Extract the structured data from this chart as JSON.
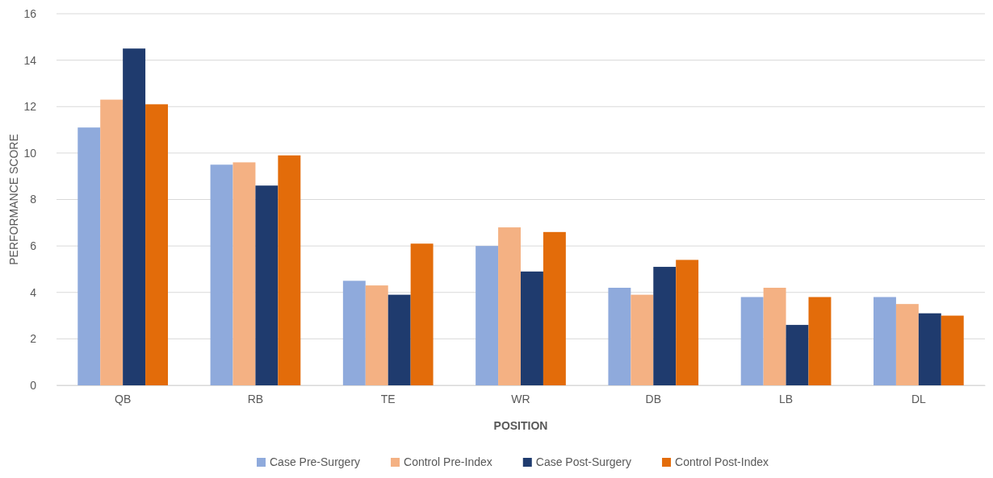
{
  "chart_data": {
    "type": "bar",
    "xlabel": "POSITION",
    "ylabel": "PERFORMANCE SCORE",
    "categories": [
      "QB",
      "RB",
      "TE",
      "WR",
      "DB",
      "LB",
      "DL"
    ],
    "series": [
      {
        "name": "Case Pre-Surgery",
        "color": "#8faadc",
        "values": [
          11.1,
          9.5,
          4.5,
          6.0,
          4.2,
          3.8,
          3.8
        ]
      },
      {
        "name": "Control Pre-Index",
        "color": "#f4b183",
        "values": [
          12.3,
          9.6,
          4.3,
          6.8,
          3.9,
          4.2,
          3.5
        ]
      },
      {
        "name": "Case Post-Surgery",
        "color": "#1f3b6e",
        "values": [
          14.5,
          8.6,
          3.9,
          4.9,
          5.1,
          2.6,
          3.1
        ]
      },
      {
        "name": "Control Post-Index",
        "color": "#e36c0a",
        "values": [
          12.1,
          9.9,
          6.1,
          6.6,
          5.4,
          3.8,
          3.0
        ]
      }
    ],
    "ylim": [
      0,
      16
    ],
    "yticks": [
      0,
      2,
      4,
      6,
      8,
      10,
      12,
      14,
      16
    ],
    "grid": "y",
    "legend": "bottom"
  }
}
